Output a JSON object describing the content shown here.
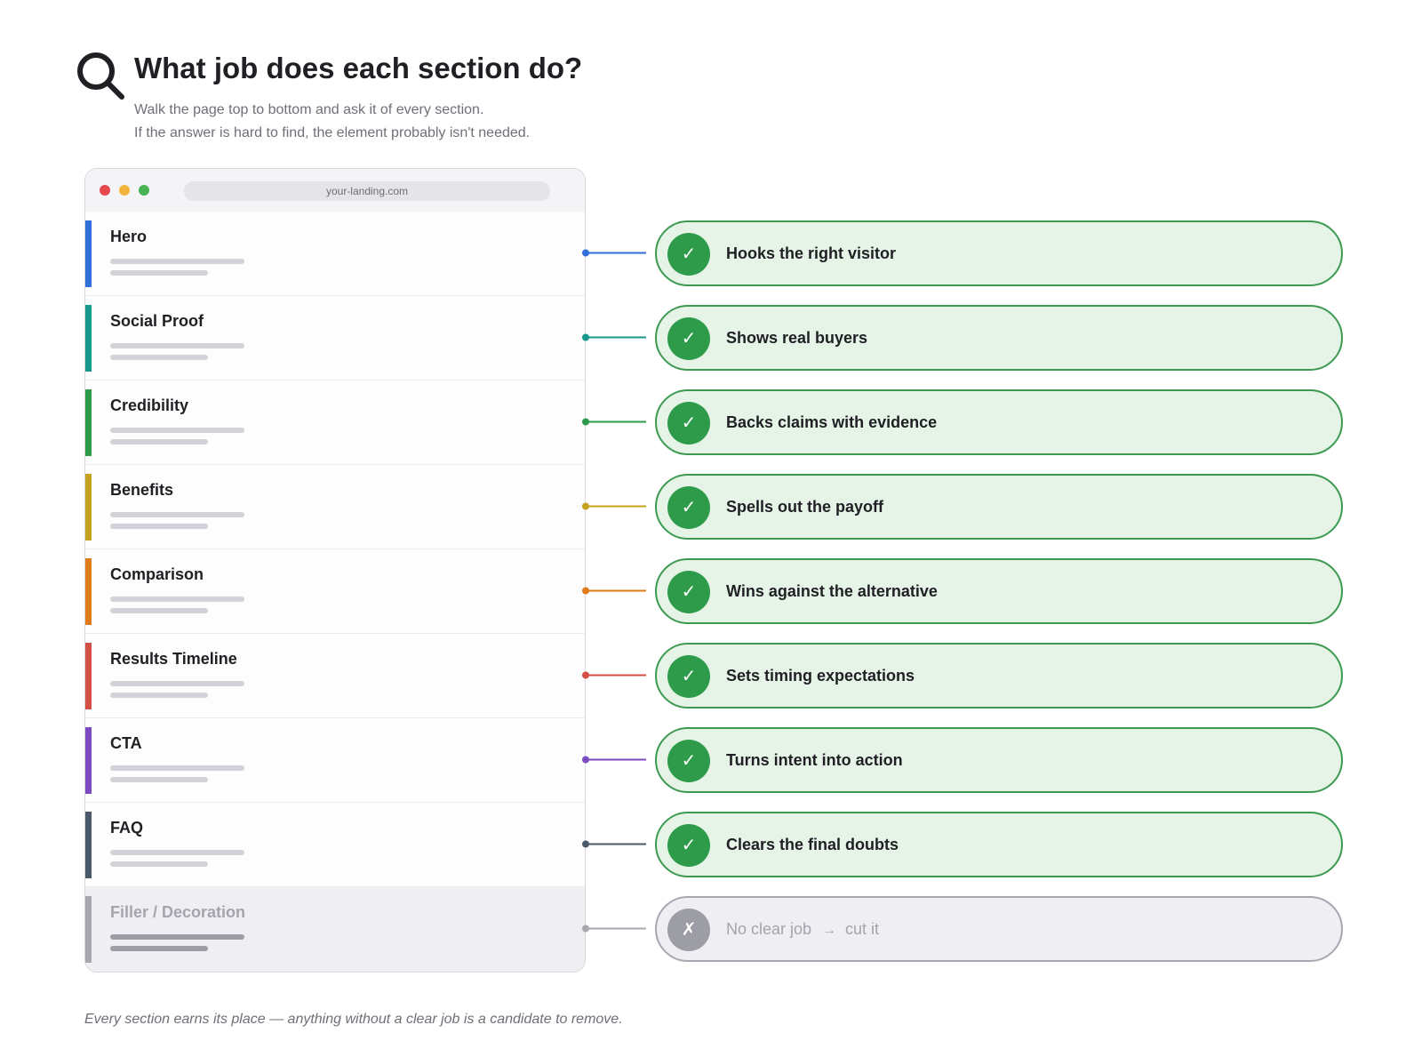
{
  "header": {
    "title": "What job does each section do?",
    "subtitle_line1": "Walk the page top to bottom and ask it of every section.",
    "subtitle_line2": "If the answer is hard to find, the element probably isn't needed."
  },
  "browser": {
    "url": "your-landing.com"
  },
  "sections": [
    {
      "label": "Hero",
      "color": "#2f6fdc",
      "job": "Hooks the right visitor",
      "status": "check"
    },
    {
      "label": "Social Proof",
      "color": "#16998a",
      "job": "Shows real buyers",
      "status": "check"
    },
    {
      "label": "Credibility",
      "color": "#2e9b4a",
      "job": "Backs claims with evidence",
      "status": "check"
    },
    {
      "label": "Benefits",
      "color": "#c4a21f",
      "job": "Spells out the payoff",
      "status": "check"
    },
    {
      "label": "Comparison",
      "color": "#e07b1a",
      "job": "Wins against the alternative",
      "status": "check"
    },
    {
      "label": "Results Timeline",
      "color": "#d44f45",
      "job": "Sets timing expectations",
      "status": "check"
    },
    {
      "label": "CTA",
      "color": "#7c4bc2",
      "job": "Turns intent into action",
      "status": "check"
    },
    {
      "label": "FAQ",
      "color": "#4a5a6a",
      "job": "Clears the final doubts",
      "status": "check"
    },
    {
      "label": "Filler / Decoration",
      "color": "#a7a7af",
      "job": "No clear job",
      "job_suffix": "cut it",
      "status": "cross"
    }
  ],
  "icons": {
    "check": "✓",
    "cross": "✗",
    "arrow": "→"
  },
  "footnote": "Every section earns its place — anything without a clear job is a candidate to remove."
}
